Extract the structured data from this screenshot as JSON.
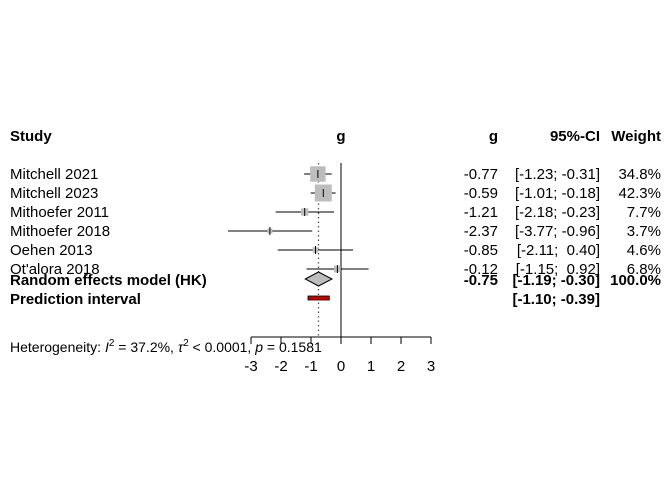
{
  "chart_data": {
    "type": "forest",
    "headers": {
      "study": "Study",
      "effect_axis": "g",
      "effect_col": "g",
      "ci_col": "95%-CI",
      "weight_col": "Weight"
    },
    "studies": [
      {
        "name": "Mitchell 2021",
        "g": -0.77,
        "lower": -1.23,
        "upper": -0.31,
        "g_text": "-0.77",
        "ci_text": "[-1.23; -0.31]",
        "weight": 34.8,
        "weight_text": "34.8%"
      },
      {
        "name": "Mitchell 2023",
        "g": -0.59,
        "lower": -1.01,
        "upper": -0.18,
        "g_text": "-0.59",
        "ci_text": "[-1.01; -0.18]",
        "weight": 42.3,
        "weight_text": "42.3%"
      },
      {
        "name": "Mithoefer 2011",
        "g": -1.21,
        "lower": -2.18,
        "upper": -0.23,
        "g_text": "-1.21",
        "ci_text": "[-2.18; -0.23]",
        "weight": 7.7,
        "weight_text": "7.7%"
      },
      {
        "name": "Mithoefer 2018",
        "g": -2.37,
        "lower": -3.77,
        "upper": -0.96,
        "g_text": "-2.37",
        "ci_text": "[-3.77; -0.96]",
        "weight": 3.7,
        "weight_text": "3.7%"
      },
      {
        "name": "Oehen 2013",
        "g": -0.85,
        "lower": -2.11,
        "upper": 0.4,
        "g_text": "-0.85",
        "ci_text": "[-2.11;  0.40]",
        "weight": 4.6,
        "weight_text": "4.6%"
      },
      {
        "name": "Ot'alora 2018",
        "g": -0.12,
        "lower": -1.15,
        "upper": 0.92,
        "g_text": "-0.12",
        "ci_text": "[-1.15;  0.92]",
        "weight": 6.8,
        "weight_text": "6.8%"
      }
    ],
    "pooled": {
      "label": "Random effects model (HK)",
      "g": -0.75,
      "lower": -1.19,
      "upper": -0.3,
      "g_text": "-0.75",
      "ci_text": "[-1.19; -0.30]",
      "weight_text": "100.0%"
    },
    "prediction": {
      "label": "Prediction interval",
      "lower": -1.1,
      "upper": -0.39,
      "ci_text": "[-1.10; -0.39]"
    },
    "heterogeneity": {
      "prefix": "Heterogeneity: ",
      "i2_symbol": "I",
      "i2_sup": "2",
      "i2_value": " = 37.2%, ",
      "tau_symbol": "τ",
      "tau_sup": "2",
      "tau_value": " < 0.0001, ",
      "p_symbol": "p",
      "p_value": " = 0.1581"
    },
    "xaxis": {
      "min": -3,
      "max": 3,
      "ticks": [
        -3,
        -2,
        -1,
        0,
        1,
        2,
        3
      ],
      "tick_labels": [
        "-3",
        "-2",
        "-1",
        "0",
        "1",
        "2",
        "3"
      ]
    },
    "colors": {
      "square": "#bdbdbd",
      "diamond": "#bdbdbd",
      "prediction": "#cc0000",
      "line": "#000000",
      "dotted": "#555555"
    }
  }
}
